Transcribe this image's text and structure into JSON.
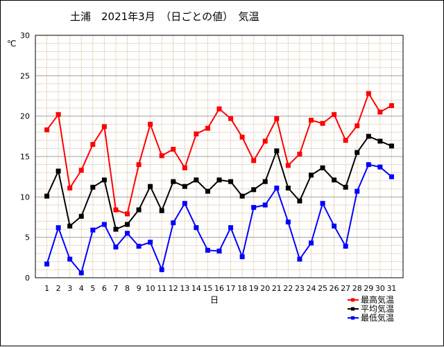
{
  "chart_data": {
    "type": "line",
    "title": "土浦　2021年3月　（日ごとの値）　気温",
    "ylabel": "℃",
    "xlabel": "日",
    "ylim": [
      0,
      30
    ],
    "yticks": [
      0,
      5,
      10,
      15,
      20,
      25,
      30
    ],
    "grid": true,
    "legend_position": "bottom-right",
    "x": [
      1,
      2,
      3,
      4,
      5,
      6,
      7,
      8,
      9,
      10,
      11,
      12,
      13,
      14,
      15,
      16,
      17,
      18,
      19,
      20,
      21,
      22,
      23,
      24,
      25,
      26,
      27,
      28,
      29,
      30,
      31
    ],
    "series": [
      {
        "name": "最高気温",
        "color": "#ff0000",
        "values": [
          18.3,
          20.2,
          11.1,
          13.3,
          16.5,
          18.7,
          8.4,
          7.9,
          14.0,
          19.0,
          15.1,
          15.9,
          13.6,
          17.8,
          18.5,
          20.9,
          19.7,
          17.4,
          14.5,
          16.9,
          19.7,
          13.9,
          15.3,
          19.5,
          19.1,
          20.2,
          17.0,
          18.8,
          22.8,
          20.5,
          21.3
        ]
      },
      {
        "name": "平均気温",
        "color": "#000000",
        "values": [
          10.1,
          13.2,
          6.4,
          7.6,
          11.2,
          12.1,
          6.0,
          6.6,
          8.4,
          11.3,
          8.3,
          11.9,
          11.3,
          12.1,
          10.7,
          12.1,
          11.9,
          10.1,
          10.9,
          11.9,
          15.7,
          11.1,
          9.5,
          12.7,
          13.6,
          12.1,
          11.2,
          15.5,
          17.5,
          16.9,
          16.3
        ]
      },
      {
        "name": "最低気温",
        "color": "#0000ff",
        "values": [
          1.7,
          6.2,
          2.3,
          0.6,
          5.9,
          6.6,
          3.8,
          5.5,
          3.9,
          4.4,
          1.0,
          6.8,
          9.2,
          6.2,
          3.4,
          3.3,
          6.2,
          2.6,
          8.7,
          9.0,
          11.1,
          6.9,
          2.3,
          4.3,
          9.2,
          6.4,
          3.9,
          10.7,
          14.0,
          13.7,
          12.5
        ]
      }
    ]
  }
}
